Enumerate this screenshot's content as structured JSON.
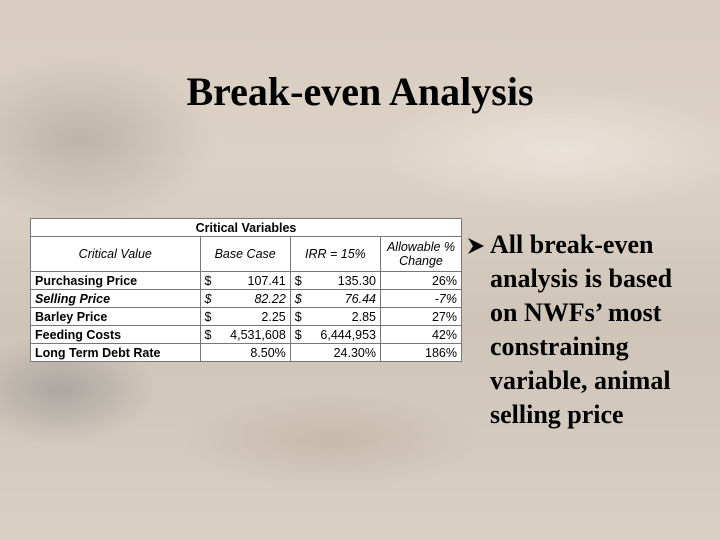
{
  "slide": {
    "title": "Break-even Analysis",
    "table": {
      "caption": "Critical Variables",
      "headers": [
        "Critical Value",
        "Base Case",
        "IRR = 15%",
        "Allowable % Change"
      ],
      "rows": [
        {
          "label": "Purchasing Price",
          "italic": false,
          "base": {
            "currency": "$",
            "value": "107.41"
          },
          "irr": {
            "currency": "$",
            "value": "135.30"
          },
          "change": "26%"
        },
        {
          "label": "Selling Price",
          "italic": true,
          "base": {
            "currency": "$",
            "value": "82.22"
          },
          "irr": {
            "currency": "$",
            "value": "76.44"
          },
          "change": "-7%"
        },
        {
          "label": "Barley Price",
          "italic": false,
          "base": {
            "currency": "$",
            "value": "2.25"
          },
          "irr": {
            "currency": "$",
            "value": "2.85"
          },
          "change": "27%"
        },
        {
          "label": "Feeding Costs",
          "italic": false,
          "base": {
            "currency": "$",
            "value": "4,531,608"
          },
          "irr": {
            "currency": "$",
            "value": "6,444,953"
          },
          "change": "42%"
        },
        {
          "label": "Long Term Debt Rate",
          "italic": false,
          "base": {
            "value": "8.50%"
          },
          "irr": {
            "value": "24.30%"
          },
          "change": "186%"
        }
      ]
    },
    "bullet": "All break-even analysis is based on NWFs’ most constraining variable, animal selling price"
  }
}
